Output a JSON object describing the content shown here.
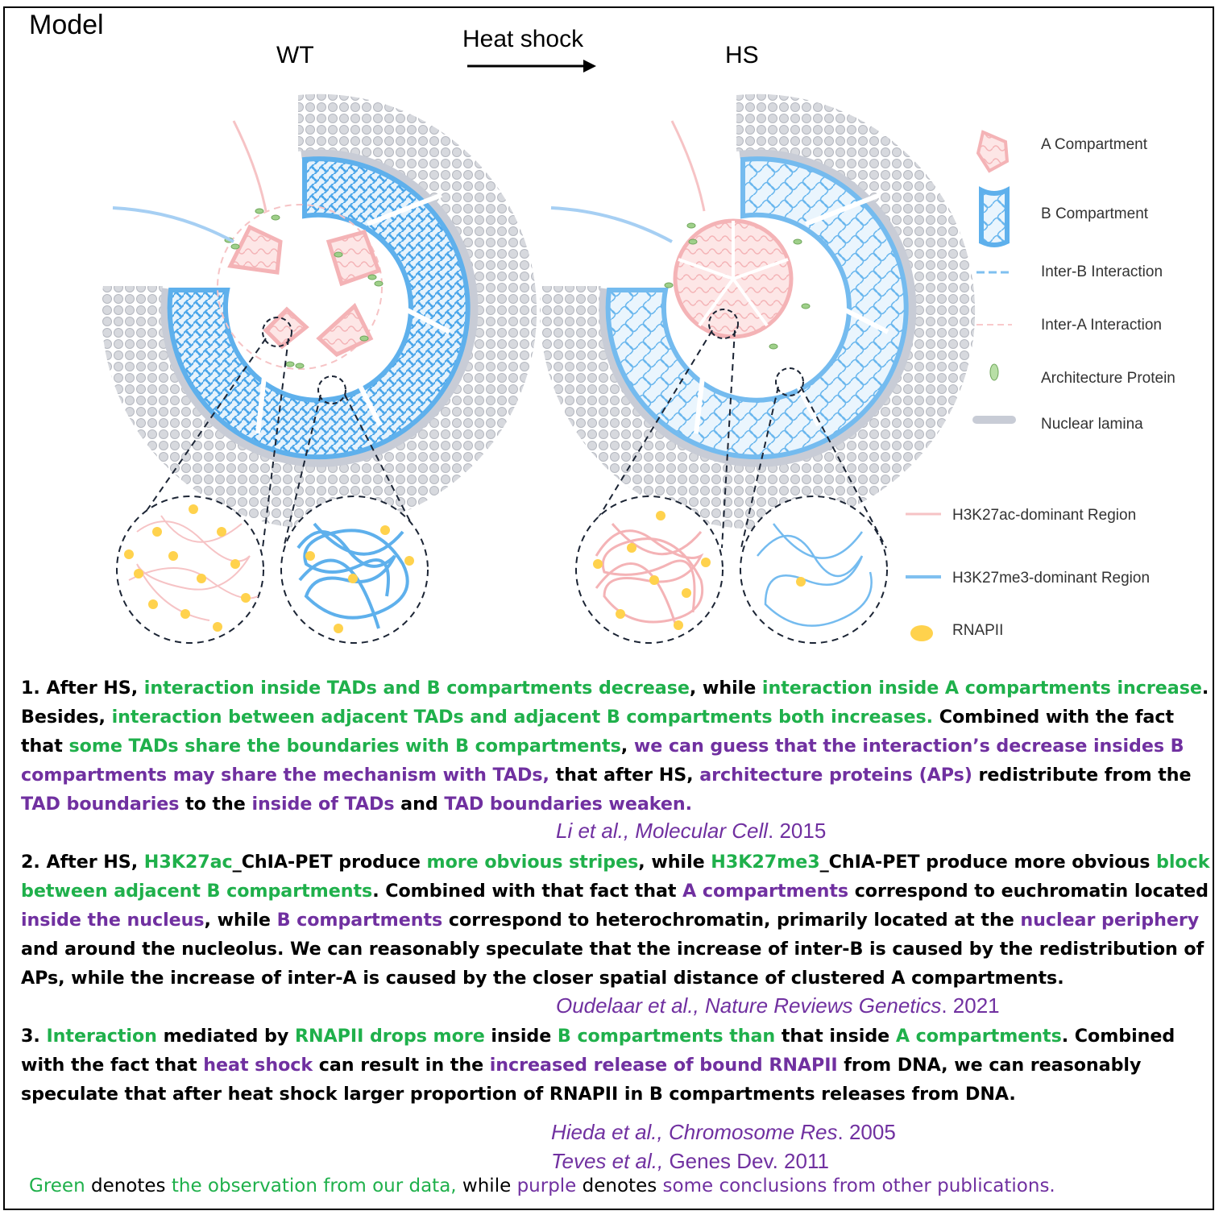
{
  "figure": {
    "title": "Model",
    "left_label": "WT",
    "arrow_label": "Heat shock",
    "right_label": "HS"
  },
  "legend": [
    {
      "label": "A Compartment",
      "icon": "a-compartment-icon"
    },
    {
      "label": "B Compartment",
      "icon": "b-compartment-icon"
    },
    {
      "label": "Inter-B Interaction",
      "icon": "inter-b-dash-icon"
    },
    {
      "label": "Inter-A Interaction",
      "icon": "inter-a-dash-icon"
    },
    {
      "label": "Architecture Protein",
      "icon": "architecture-protein-icon"
    },
    {
      "label": "Nuclear lamina",
      "icon": "nuclear-lamina-icon"
    },
    {
      "label": "H3K27ac-dominant Region",
      "icon": "h3k27ac-line-icon"
    },
    {
      "label": "H3K27me3-dominant Region",
      "icon": "h3k27me3-line-icon"
    },
    {
      "label": "RNAPII",
      "icon": "rnapii-dot-icon"
    }
  ],
  "colors": {
    "observation_green": "#1fb04b",
    "publication_purple": "#7030a0",
    "a_compartment_pink": "#f9c9cb",
    "b_compartment_blue": "#7fc0f0",
    "rnapii_yellow": "#ffd24d",
    "lamina_gray": "#c8ccd6"
  },
  "paragraphs": {
    "p1": {
      "s1": "1. After HS, ",
      "s2": "interaction inside TADs and B compartments decrease",
      "s3": ", while ",
      "s4": "interaction inside A compartments increase",
      "s5": ". Besides, ",
      "s6": "interaction between adjacent TADs and adjacent B compartments both increases.",
      "s7": " Combined with the fact that ",
      "s8": "some TADs share the boundaries with B compartments",
      "s9": ", ",
      "s10": "we can guess that the interaction’s decrease insides B compartments may share the mechanism with TADs,",
      "s11": " that after HS, ",
      "s12": "architecture proteins (APs)",
      "s13": " redistribute from the ",
      "s14": "TAD boundaries",
      "s15": " to the ",
      "s16": "inside of TADs",
      "s17": " and ",
      "s18": "TAD boundaries weaken."
    },
    "p2": {
      "s1": "2. After HS, ",
      "s2": "H3K27ac",
      "s3": "_ChIA-PET produce ",
      "s4": "more obvious stripes",
      "s5": ", while ",
      "s6": "H3K27me3",
      "s7": "_ChIA-PET produce more obvious ",
      "s8": "block between adjacent B compartments",
      "s9": ". Combined with that fact that ",
      "s10": "A compartments",
      "s11": " correspond to euchromatin located ",
      "s12": "inside the nucleus",
      "s13": ", while ",
      "s14": "B compartments",
      "s15": " correspond to heterochromatin, primarily located at the ",
      "s16": "nuclear periphery",
      "s17": " and around the nucleolus.  We can reasonably speculate that the increase of inter-B is caused by the redistribution of APs, while the increase of inter-A is caused by the closer spatial distance of clustered A compartments."
    },
    "p3": {
      "s1": "3. ",
      "s2": "Interaction",
      "s3": " mediated by ",
      "s4": "RNAPII drops more",
      "s5": " inside ",
      "s6": "B compartments than",
      "s7": " that inside ",
      "s8": "A compartments",
      "s9": ". Combined with the fact that ",
      "s10": "heat shock",
      "s11": " can result in the ",
      "s12": "increased release of bound RNAPII",
      "s13": " from DNA, we can reasonably speculate that after heat shock larger proportion of RNAPII in B compartments releases from DNA."
    }
  },
  "citations": [
    {
      "authors": "Li et al., ",
      "journal": "Molecular Cell",
      "year": ". 2015"
    },
    {
      "authors": "Oudelaar et al., ",
      "journal": "Nature Reviews Genetics",
      "year": ". 2021"
    },
    {
      "authors": "Hieda et al., ",
      "journal": "Chromosome Res",
      "year": ". 2005"
    },
    {
      "authors": "Teves et al., ",
      "journal": "Genes Dev",
      "year": ". 2011"
    }
  ],
  "footer": {
    "w1": "Green",
    "w2": " denotes ",
    "w3": "the observation from our data,",
    "w4": " while ",
    "w5": "purple",
    "w6": " denotes ",
    "w7": "some conclusions from other publications."
  }
}
